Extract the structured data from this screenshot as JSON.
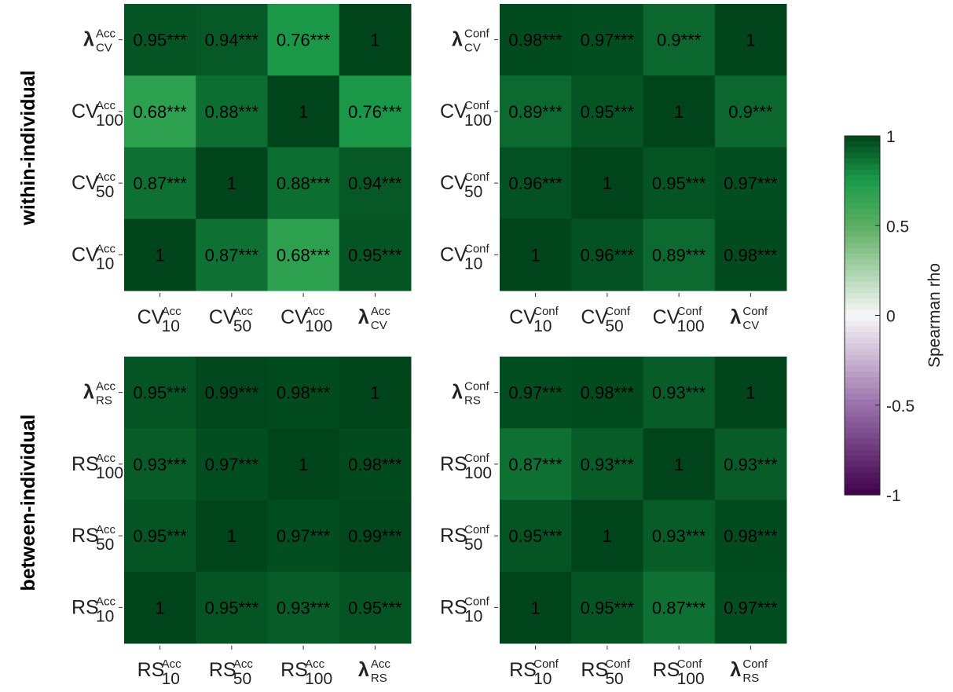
{
  "row_titles": [
    "within-individual",
    "between-individual"
  ],
  "colorbar": {
    "label": "Spearman rho",
    "ticks": [
      1,
      0.5,
      0,
      -0.5,
      -1
    ],
    "tick_labels": [
      "1",
      "0.5",
      "0",
      "-0.5",
      "-1"
    ],
    "colors": {
      "neg_end": "#40004b",
      "neg_mid": "#9970ab",
      "zero": "#f7f7f7",
      "pos_mid": "#5aae61",
      "pos_strong": "#1b9b4a",
      "pos_end": "#00441b"
    }
  },
  "chart_data": [
    {
      "type": "heatmap",
      "panel": "within-individual-accuracy",
      "x_labels": [
        {
          "base": "CV",
          "sup": "Acc",
          "sub": "10",
          "bold": false
        },
        {
          "base": "CV",
          "sup": "Acc",
          "sub": "50",
          "bold": false
        },
        {
          "base": "CV",
          "sup": "Acc",
          "sub": "100",
          "bold": false
        },
        {
          "base": "λ",
          "sup": "Acc",
          "sub": "CV",
          "bold": true
        }
      ],
      "y_labels": [
        {
          "base": "λ",
          "sup": "Acc",
          "sub": "CV",
          "bold": true
        },
        {
          "base": "CV",
          "sup": "Acc",
          "sub": "100",
          "bold": false
        },
        {
          "base": "CV",
          "sup": "Acc",
          "sub": "50",
          "bold": false
        },
        {
          "base": "CV",
          "sup": "Acc",
          "sub": "10",
          "bold": false
        }
      ],
      "values": [
        [
          0.95,
          0.94,
          0.76,
          1
        ],
        [
          0.68,
          0.88,
          1,
          0.76
        ],
        [
          0.87,
          1,
          0.88,
          0.94
        ],
        [
          1,
          0.87,
          0.68,
          0.95
        ]
      ],
      "labels": [
        [
          "0.95***",
          "0.94***",
          "0.76***",
          "1"
        ],
        [
          "0.68***",
          "0.88***",
          "1",
          "0.76***"
        ],
        [
          "0.87***",
          "1",
          "0.88***",
          "0.94***"
        ],
        [
          "1",
          "0.87***",
          "0.68***",
          "0.95***"
        ]
      ],
      "clim": [
        -1,
        1
      ]
    },
    {
      "type": "heatmap",
      "panel": "within-individual-confidence",
      "x_labels": [
        {
          "base": "CV",
          "sup": "Conf",
          "sub": "10",
          "bold": false
        },
        {
          "base": "CV",
          "sup": "Conf",
          "sub": "50",
          "bold": false
        },
        {
          "base": "CV",
          "sup": "Conf",
          "sub": "100",
          "bold": false
        },
        {
          "base": "λ",
          "sup": "Conf",
          "sub": "CV",
          "bold": true
        }
      ],
      "y_labels": [
        {
          "base": "λ",
          "sup": "Conf",
          "sub": "CV",
          "bold": true
        },
        {
          "base": "CV",
          "sup": "Conf",
          "sub": "100",
          "bold": false
        },
        {
          "base": "CV",
          "sup": "Conf",
          "sub": "50",
          "bold": false
        },
        {
          "base": "CV",
          "sup": "Conf",
          "sub": "10",
          "bold": false
        }
      ],
      "values": [
        [
          0.98,
          0.97,
          0.9,
          1
        ],
        [
          0.89,
          0.95,
          1,
          0.9
        ],
        [
          0.96,
          1,
          0.95,
          0.97
        ],
        [
          1,
          0.96,
          0.89,
          0.98
        ]
      ],
      "labels": [
        [
          "0.98***",
          "0.97***",
          "0.9***",
          "1"
        ],
        [
          "0.89***",
          "0.95***",
          "1",
          "0.9***"
        ],
        [
          "0.96***",
          "1",
          "0.95***",
          "0.97***"
        ],
        [
          "1",
          "0.96***",
          "0.89***",
          "0.98***"
        ]
      ],
      "clim": [
        -1,
        1
      ]
    },
    {
      "type": "heatmap",
      "panel": "between-individual-accuracy",
      "x_labels": [
        {
          "base": "RS",
          "sup": "Acc",
          "sub": "10",
          "bold": false
        },
        {
          "base": "RS",
          "sup": "Acc",
          "sub": "50",
          "bold": false
        },
        {
          "base": "RS",
          "sup": "Acc",
          "sub": "100",
          "bold": false
        },
        {
          "base": "λ",
          "sup": "Acc",
          "sub": "RS",
          "bold": true
        }
      ],
      "y_labels": [
        {
          "base": "λ",
          "sup": "Acc",
          "sub": "RS",
          "bold": true
        },
        {
          "base": "RS",
          "sup": "Acc",
          "sub": "100",
          "bold": false
        },
        {
          "base": "RS",
          "sup": "Acc",
          "sub": "50",
          "bold": false
        },
        {
          "base": "RS",
          "sup": "Acc",
          "sub": "10",
          "bold": false
        }
      ],
      "values": [
        [
          0.95,
          0.99,
          0.98,
          1
        ],
        [
          0.93,
          0.97,
          1,
          0.98
        ],
        [
          0.95,
          1,
          0.97,
          0.99
        ],
        [
          1,
          0.95,
          0.93,
          0.95
        ]
      ],
      "labels": [
        [
          "0.95***",
          "0.99***",
          "0.98***",
          "1"
        ],
        [
          "0.93***",
          "0.97***",
          "1",
          "0.98***"
        ],
        [
          "0.95***",
          "1",
          "0.97***",
          "0.99***"
        ],
        [
          "1",
          "0.95***",
          "0.93***",
          "0.95***"
        ]
      ],
      "clim": [
        -1,
        1
      ]
    },
    {
      "type": "heatmap",
      "panel": "between-individual-confidence",
      "x_labels": [
        {
          "base": "RS",
          "sup": "Conf",
          "sub": "10",
          "bold": false
        },
        {
          "base": "RS",
          "sup": "Conf",
          "sub": "50",
          "bold": false
        },
        {
          "base": "RS",
          "sup": "Conf",
          "sub": "100",
          "bold": false
        },
        {
          "base": "λ",
          "sup": "Conf",
          "sub": "RS",
          "bold": true
        }
      ],
      "y_labels": [
        {
          "base": "λ",
          "sup": "Conf",
          "sub": "RS",
          "bold": true
        },
        {
          "base": "RS",
          "sup": "Conf",
          "sub": "100",
          "bold": false
        },
        {
          "base": "RS",
          "sup": "Conf",
          "sub": "50",
          "bold": false
        },
        {
          "base": "RS",
          "sup": "Conf",
          "sub": "10",
          "bold": false
        }
      ],
      "values": [
        [
          0.97,
          0.98,
          0.93,
          1
        ],
        [
          0.87,
          0.93,
          1,
          0.93
        ],
        [
          0.95,
          1,
          0.93,
          0.98
        ],
        [
          1,
          0.95,
          0.87,
          0.97
        ]
      ],
      "labels": [
        [
          "0.97***",
          "0.98***",
          "0.93***",
          "1"
        ],
        [
          "0.87***",
          "0.93***",
          "1",
          "0.93***"
        ],
        [
          "0.95***",
          "1",
          "0.93***",
          "0.98***"
        ],
        [
          "1",
          "0.95***",
          "0.87***",
          "0.97***"
        ]
      ],
      "clim": [
        -1,
        1
      ]
    }
  ]
}
